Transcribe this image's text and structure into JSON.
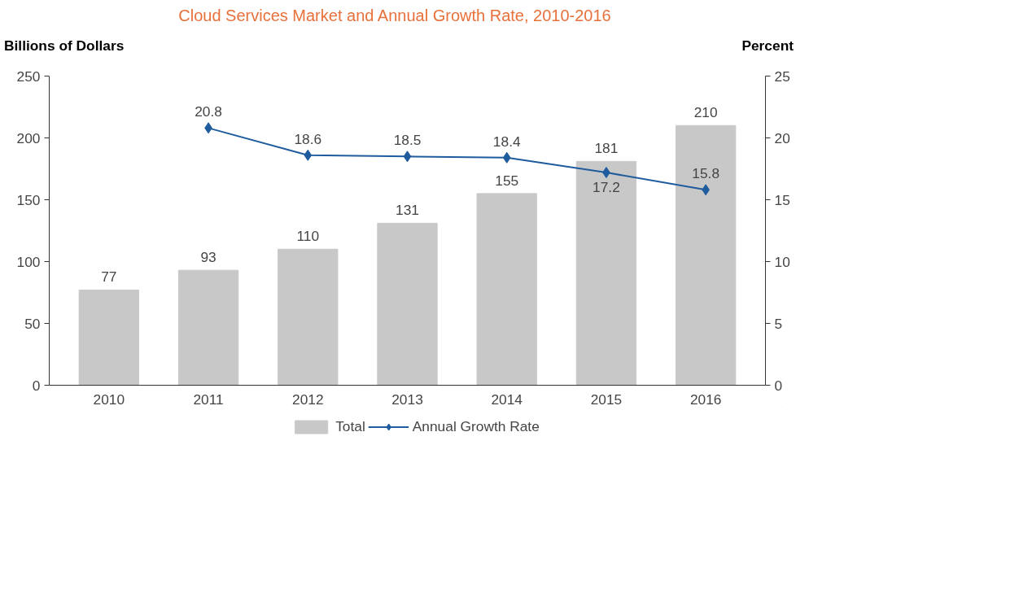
{
  "chart_data": {
    "type": "bar",
    "title": "Cloud Services Market and Annual Growth Rate, 2010-2016",
    "ylabel": "Billions of Dollars",
    "y2label": "Percent",
    "categories": [
      "2010",
      "2011",
      "2012",
      "2013",
      "2014",
      "2015",
      "2016"
    ],
    "series": [
      {
        "name": "Total",
        "color": "#c8c8c8",
        "values": [
          77,
          93,
          110,
          131,
          155,
          181,
          210
        ]
      },
      {
        "name": "Annual Growth Rate",
        "type": "line",
        "axis": "y2",
        "color": "#1f5c9e",
        "marker": "diamond",
        "values": [
          null,
          20.8,
          18.6,
          18.5,
          18.4,
          17.2,
          15.8
        ]
      }
    ],
    "ylim": [
      0,
      250
    ],
    "yticks": [
      0,
      50,
      100,
      150,
      200,
      250
    ],
    "y2lim": [
      0,
      25
    ],
    "y2ticks": [
      0,
      5,
      10,
      15,
      20,
      25
    ],
    "data_labels": true,
    "legend": "bottom",
    "grid": false
  }
}
